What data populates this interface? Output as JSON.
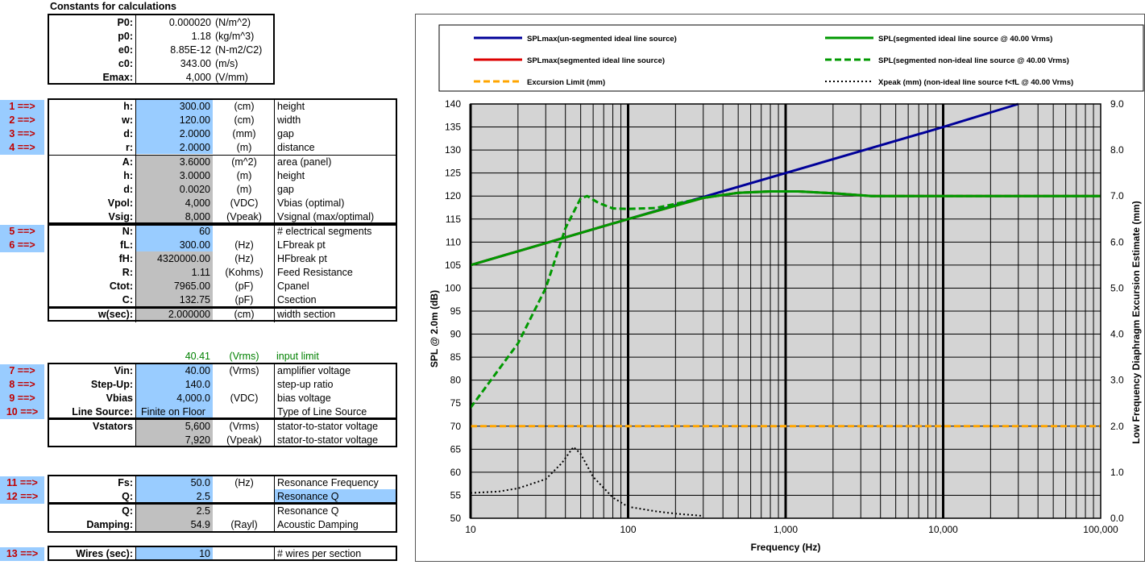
{
  "constants": {
    "title": "Constants for calculations",
    "rows": [
      {
        "label": "P0:",
        "value": "0.000020",
        "unit": "(N/m^2)"
      },
      {
        "label": "p0:",
        "value": "1.18",
        "unit": "(kg/m^3)"
      },
      {
        "label": "e0:",
        "value": "8.85E-12",
        "unit": "(N-m2/C2)"
      },
      {
        "label": "c0:",
        "value": "343.00",
        "unit": "(m/s)"
      },
      {
        "label": "Emax:",
        "value": "4,000",
        "unit": "(V/mm)"
      }
    ]
  },
  "arrows": [
    "1 ==>",
    "2 ==>",
    "3 ==>",
    "4 ==>",
    "5 ==>",
    "6 ==>",
    "7 ==>",
    "8 ==>",
    "9 ==>",
    "10 ==>",
    "11 ==>",
    "12 ==>",
    "13 ==>"
  ],
  "geometry": [
    {
      "label": "h:",
      "value": "300.00",
      "unit": "(cm)",
      "desc": "height"
    },
    {
      "label": "w:",
      "value": "120.00",
      "unit": "(cm)",
      "desc": "width"
    },
    {
      "label": "d:",
      "value": "2.0000",
      "unit": "(mm)",
      "desc": "gap"
    },
    {
      "label": "r:",
      "value": "2.0000",
      "unit": "(m)",
      "desc": "distance"
    }
  ],
  "derived": [
    {
      "label": "A:",
      "value": "3.6000",
      "unit": "(m^2)",
      "desc": "area (panel)"
    },
    {
      "label": "h:",
      "value": "3.0000",
      "unit": "(m)",
      "desc": "height"
    },
    {
      "label": "d:",
      "value": "0.0020",
      "unit": "(m)",
      "desc": "gap"
    },
    {
      "label": "Vpol:",
      "value": "4,000",
      "unit": "(VDC)",
      "desc": "Vbias (optimal)"
    },
    {
      "label": "Vsig:",
      "value": "8,000",
      "unit": "(Vpeak)",
      "desc": "Vsignal (max/optimal)"
    }
  ],
  "segments": [
    {
      "label": "N:",
      "value": "60",
      "unit": "",
      "desc": "# electrical segments"
    },
    {
      "label": "fL:",
      "value": "300.00",
      "unit": "(Hz)",
      "desc": "LFbreak pt"
    },
    {
      "label": "fH:",
      "value": "4320000.00",
      "unit": "(Hz)",
      "desc": "HFbreak pt"
    },
    {
      "label": "R:",
      "value": "1.11",
      "unit": "(Kohms)",
      "desc": "Feed Resistance"
    },
    {
      "label": "Ctot:",
      "value": "7965.00",
      "unit": "(pF)",
      "desc": "Cpanel"
    },
    {
      "label": "C:",
      "value": "132.75",
      "unit": "(pF)",
      "desc": "Csection"
    }
  ],
  "wsec": {
    "label": "w(sec):",
    "value": "2.000000",
    "unit": "(cm)",
    "desc": "width section"
  },
  "input_limit": {
    "value": "40.41",
    "unit": "(Vrms)",
    "desc": "input limit"
  },
  "drive": [
    {
      "label": "Vin:",
      "value": "40.00",
      "unit": "(Vrms)",
      "desc": "amplifier voltage"
    },
    {
      "label": "Step-Up:",
      "value": "140.0",
      "unit": "",
      "desc": "step-up ratio"
    },
    {
      "label": "Vbias",
      "value": "4,000.0",
      "unit": "(VDC)",
      "desc": "bias voltage"
    },
    {
      "label": "Line Source:",
      "value": "Finite on Floor",
      "unit": "",
      "desc": "Type of Line Source"
    }
  ],
  "stators": {
    "label": "Vstators",
    "value1": "5,600",
    "unit1": "(Vrms)",
    "desc1": "stator-to-stator voltage",
    "value2": "7,920",
    "unit2": "(Vpeak)",
    "desc2": "stator-to-stator voltage"
  },
  "resonance": [
    {
      "label": "Fs:",
      "value": "50.0",
      "unit": "(Hz)",
      "desc": "Resonance Frequency"
    },
    {
      "label": "Q:",
      "value": "2.5",
      "unit": "",
      "desc": "Resonance Q"
    },
    {
      "label": "Q:",
      "value": "2.5",
      "unit": "",
      "desc": "Resonance Q"
    },
    {
      "label": "Damping:",
      "value": "54.9",
      "unit": "(Rayl)",
      "desc": "Acoustic Damping"
    }
  ],
  "wires": {
    "label": "Wires (sec):",
    "value": "10",
    "unit": "",
    "desc": "# wires per section"
  },
  "chart_data": {
    "type": "line",
    "xlabel": "Frequency (Hz)",
    "ylabel": "SPL @ 2.0m (dB)",
    "y2label": "Low Frequency Diaphragm Excursion Estimate (mm)",
    "xscale": "log",
    "xlim": [
      10,
      100000
    ],
    "ylim": [
      50,
      140
    ],
    "y2lim": [
      0,
      9
    ],
    "xticks": [
      "10",
      "100",
      "1,000",
      "10,000",
      "100,000"
    ],
    "yticks": [
      "50",
      "55",
      "60",
      "65",
      "70",
      "75",
      "80",
      "85",
      "90",
      "95",
      "100",
      "105",
      "110",
      "115",
      "120",
      "125",
      "130",
      "135",
      "140"
    ],
    "y2ticks": [
      "0.0",
      "1.0",
      "2.0",
      "3.0",
      "4.0",
      "5.0",
      "6.0",
      "7.0",
      "8.0",
      "9.0"
    ],
    "legend_position": "top",
    "grid": true,
    "plot_background": "#d4d4d4",
    "series": [
      {
        "name": "SPLmax(un-segmented ideal line source)",
        "color": "#000099",
        "style": "solid",
        "axis": "left",
        "x": [
          10,
          100,
          300,
          1000,
          10000,
          30000
        ],
        "y": [
          105,
          115,
          119.8,
          125,
          135,
          140
        ]
      },
      {
        "name": "SPLmax(segmented ideal line source)",
        "color": "#dd0000",
        "style": "solid",
        "axis": "left",
        "x": [
          10,
          100,
          300,
          500,
          800,
          1200,
          2000,
          3500,
          10000,
          100000
        ],
        "y": [
          105,
          115,
          119.6,
          120.7,
          121,
          121,
          120.6,
          120,
          120,
          120
        ]
      },
      {
        "name": "Excursion Limit (mm)",
        "color": "#ffa500",
        "style": "dashed",
        "axis": "right",
        "x": [
          10,
          100000
        ],
        "y": [
          2.0,
          2.0
        ]
      },
      {
        "name": "SPL(segmented ideal line source @ 40.00 Vrms)",
        "color": "#009900",
        "style": "solid",
        "axis": "left",
        "x": [
          10,
          100,
          300,
          500,
          800,
          1200,
          2000,
          3500,
          10000,
          100000
        ],
        "y": [
          105,
          115,
          119.6,
          120.7,
          121,
          121,
          120.6,
          120,
          120,
          120
        ]
      },
      {
        "name": "SPL(segmented non-ideal line source @ 40.00 Vrms)",
        "color": "#009900",
        "style": "dashed",
        "axis": "left",
        "x": [
          10,
          20,
          30,
          40,
          50,
          55,
          65,
          80,
          100,
          150,
          300,
          500,
          800,
          1200,
          2000,
          3500,
          10000,
          100000
        ],
        "y": [
          74,
          88,
          100,
          113,
          119.5,
          120,
          118.5,
          117.3,
          117.2,
          117.4,
          119.6,
          120.7,
          121,
          121,
          120.6,
          120,
          120,
          120
        ]
      },
      {
        "name": "Xpeak (mm) (non-ideal line source f<fL @ 40.00 Vrms)",
        "color": "#000000",
        "style": "dotted",
        "axis": "right",
        "x": [
          10,
          15,
          20,
          30,
          38,
          45,
          50,
          60,
          80,
          100,
          150,
          200,
          300
        ],
        "y": [
          0.55,
          0.58,
          0.65,
          0.85,
          1.2,
          1.55,
          1.4,
          0.9,
          0.45,
          0.25,
          0.15,
          0.1,
          0.05
        ]
      }
    ]
  }
}
